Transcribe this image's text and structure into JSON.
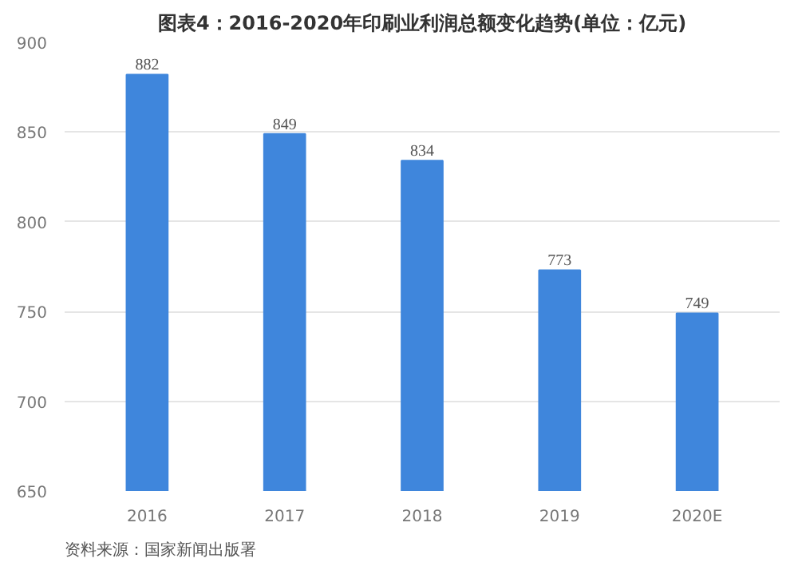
{
  "chart_data": {
    "type": "bar",
    "title": "图表4：2016-2020年印刷业利润总额变化趋势(单位：亿元)",
    "categories": [
      "2016",
      "2017",
      "2018",
      "2019",
      "2020E"
    ],
    "values": [
      882,
      849,
      834,
      773,
      749
    ],
    "color": "#3f86dc",
    "data_labels": true,
    "ylim": [
      650,
      900
    ],
    "yticks": [
      650,
      700,
      750,
      800,
      850,
      900
    ],
    "grid": "y",
    "annotations": [
      "资料来源：国家新闻出版署"
    ]
  }
}
